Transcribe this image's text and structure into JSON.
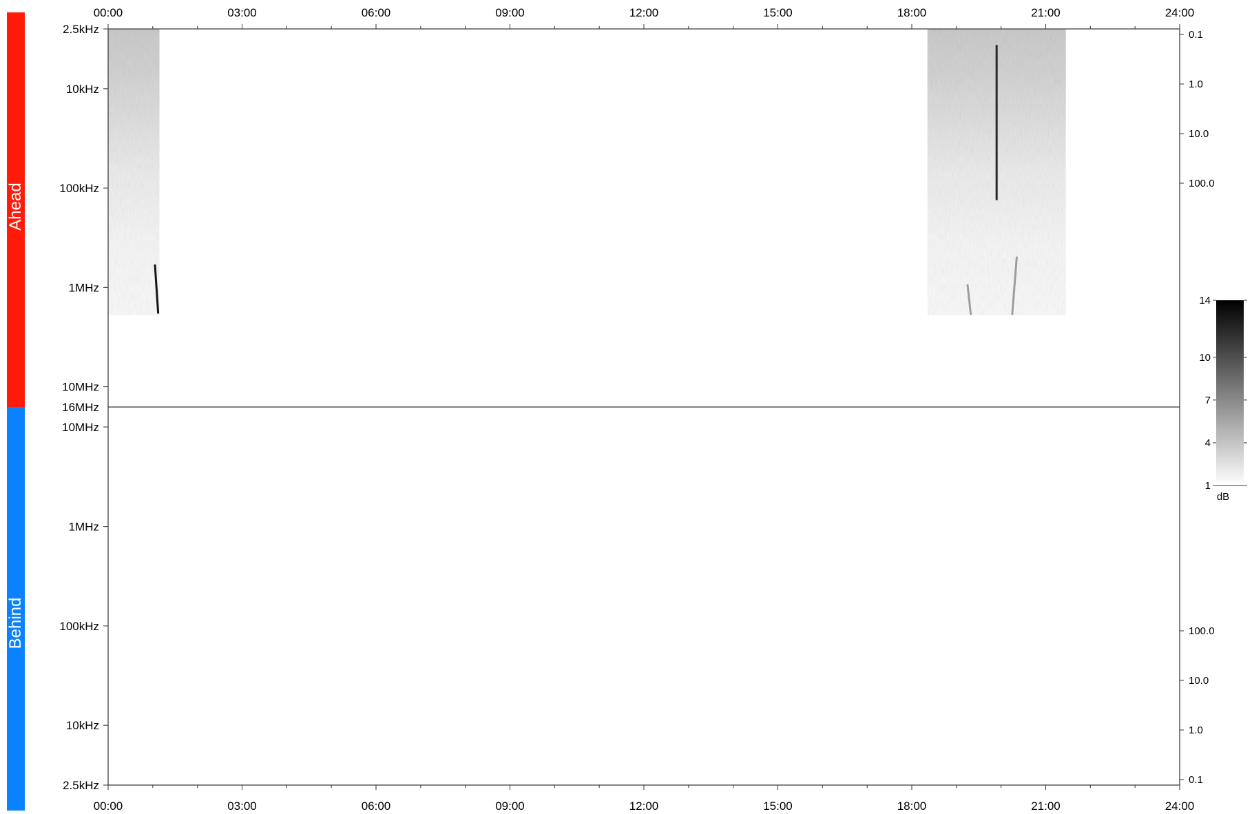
{
  "panels": {
    "ahead": {
      "label": "Ahead",
      "color": "#ff1a0a"
    },
    "behind": {
      "label": "Behind",
      "color": "#0a82ff"
    }
  },
  "chart_data": {
    "type": "heatmap",
    "x_axis": {
      "range_hours": [
        0,
        24
      ],
      "tick_labels": [
        "00:00",
        "03:00",
        "06:00",
        "09:00",
        "12:00",
        "15:00",
        "18:00",
        "21:00",
        "24:00"
      ],
      "tick_hours": [
        0,
        3,
        6,
        9,
        12,
        15,
        18,
        21,
        24
      ]
    },
    "boundary_label": "16MHz",
    "ahead_panel": {
      "y_axis_left": {
        "scale": "log",
        "range_hz": [
          2500,
          16000000
        ],
        "ticks": [
          {
            "label": "2.5kHz",
            "hz": 2500
          },
          {
            "label": "10kHz",
            "hz": 10000
          },
          {
            "label": "100kHz",
            "hz": 100000
          },
          {
            "label": "1MHz",
            "hz": 1000000
          },
          {
            "label": "10MHz",
            "hz": 10000000
          }
        ]
      },
      "y_axis_right": {
        "scale": "log",
        "ticks": [
          {
            "label": "0.1",
            "value": 0.1
          },
          {
            "label": "1.0",
            "value": 1
          },
          {
            "label": "10.0",
            "value": 10
          },
          {
            "label": "100.0",
            "value": 100
          }
        ]
      },
      "data_blocks": [
        {
          "start_hour": 0.0,
          "end_hour": 1.15,
          "f_low_hz": 2500,
          "f_high_hz": 1900000
        },
        {
          "start_hour": 18.35,
          "end_hour": 21.45,
          "f_low_hz": 2500,
          "f_high_hz": 1900000
        }
      ],
      "bursts": [
        {
          "hour_start": 1.05,
          "hour_end": 1.12,
          "f_start_hz": 600000,
          "f_end_hz": 1800000,
          "intensity_db": 13
        },
        {
          "hour_start": 19.25,
          "hour_end": 19.32,
          "f_start_hz": 950000,
          "f_end_hz": 1850000,
          "intensity_db": 6
        },
        {
          "hour_start": 20.35,
          "hour_end": 20.25,
          "f_start_hz": 500000,
          "f_end_hz": 1850000,
          "intensity_db": 6
        },
        {
          "hour_start": 19.9,
          "hour_end": 19.9,
          "f_start_hz": 3700,
          "f_end_hz": 130000,
          "intensity_db": 12
        }
      ]
    },
    "behind_panel": {
      "y_axis_left": {
        "scale": "log",
        "range_hz": [
          16000000,
          2500
        ],
        "ticks": [
          {
            "label": "10MHz",
            "hz": 10000000
          },
          {
            "label": "1MHz",
            "hz": 1000000
          },
          {
            "label": "100kHz",
            "hz": 100000
          },
          {
            "label": "10kHz",
            "hz": 10000
          },
          {
            "label": "2.5kHz",
            "hz": 2500
          }
        ]
      },
      "y_axis_right": {
        "scale": "log",
        "ticks": [
          {
            "label": "100.0",
            "value": 100
          },
          {
            "label": "10.0",
            "value": 10
          },
          {
            "label": "1.0",
            "value": 1
          },
          {
            "label": "0.1",
            "value": 0.1
          }
        ]
      },
      "data_blocks": []
    },
    "colorbar": {
      "range_db": [
        1,
        14
      ],
      "tick_labels": [
        "14",
        "10",
        "7",
        "4",
        "1"
      ],
      "tick_values": [
        14,
        10,
        7,
        4,
        1
      ],
      "unit": "dB",
      "colors": [
        "#ffffff",
        "#000000"
      ]
    }
  }
}
